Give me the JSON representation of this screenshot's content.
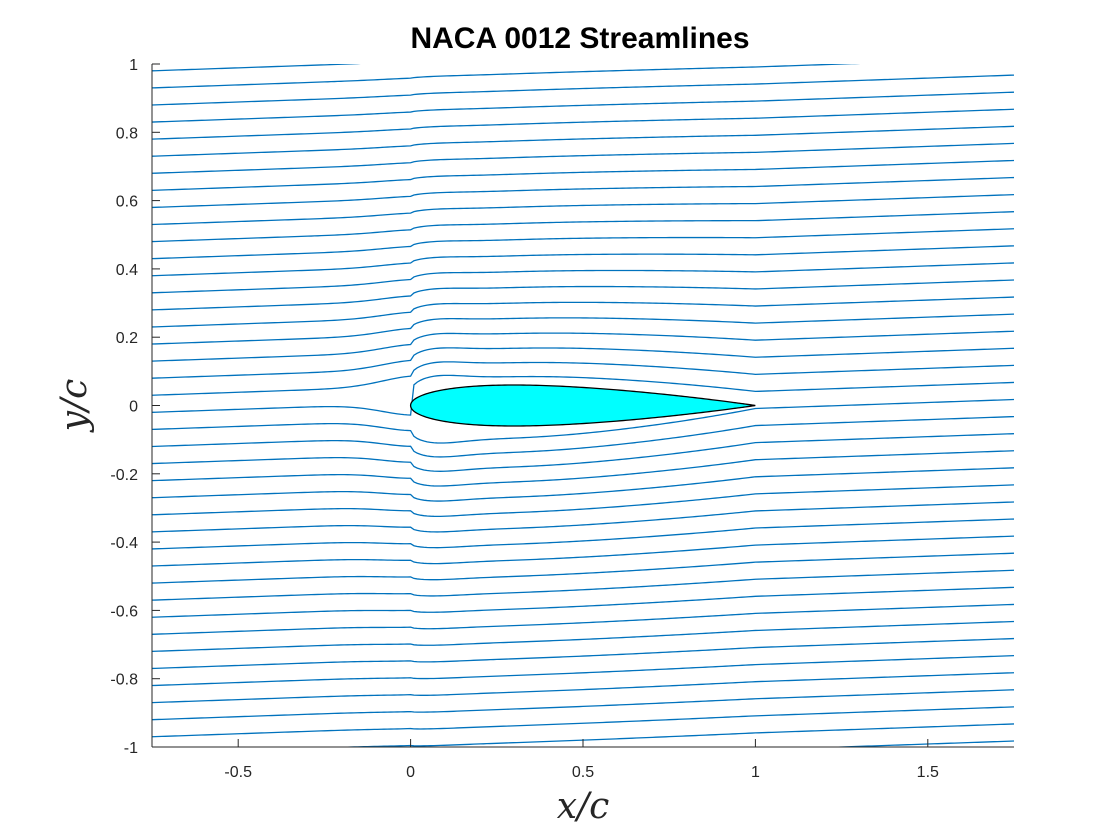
{
  "chart_data": {
    "type": "line",
    "title": "NACA 0012 Streamlines",
    "xlabel": "x/c",
    "ylabel": "y/c",
    "xlim": [
      -0.75,
      1.75
    ],
    "ylim": [
      -1,
      1
    ],
    "xticks": [
      -0.5,
      0,
      0.5,
      1,
      1.5
    ],
    "xtick_labels": [
      "-0.5",
      "0",
      "0.5",
      "1",
      "1.5"
    ],
    "yticks": [
      -1,
      -0.8,
      -0.6,
      -0.4,
      -0.2,
      0,
      0.2,
      0.4,
      0.6,
      0.8,
      1
    ],
    "ytick_labels": [
      "-1",
      "-0.8",
      "-0.6",
      "-0.4",
      "-0.2",
      "0",
      "0.2",
      "0.4",
      "0.6",
      "0.8",
      "1"
    ],
    "grid": false,
    "streamline_color": "#0072bd",
    "airfoil": {
      "name": "NACA 0012",
      "chord": 1,
      "max_thickness": 0.12,
      "fill_color": "#00ffff",
      "edge_color": "#000000"
    },
    "streamlines": {
      "count": 43,
      "y_start_range": [
        -1.12,
        0.98
      ],
      "x_start": -0.75,
      "x_end": 1.75,
      "slope": 0.035,
      "stagnation_offset": -0.02
    }
  }
}
